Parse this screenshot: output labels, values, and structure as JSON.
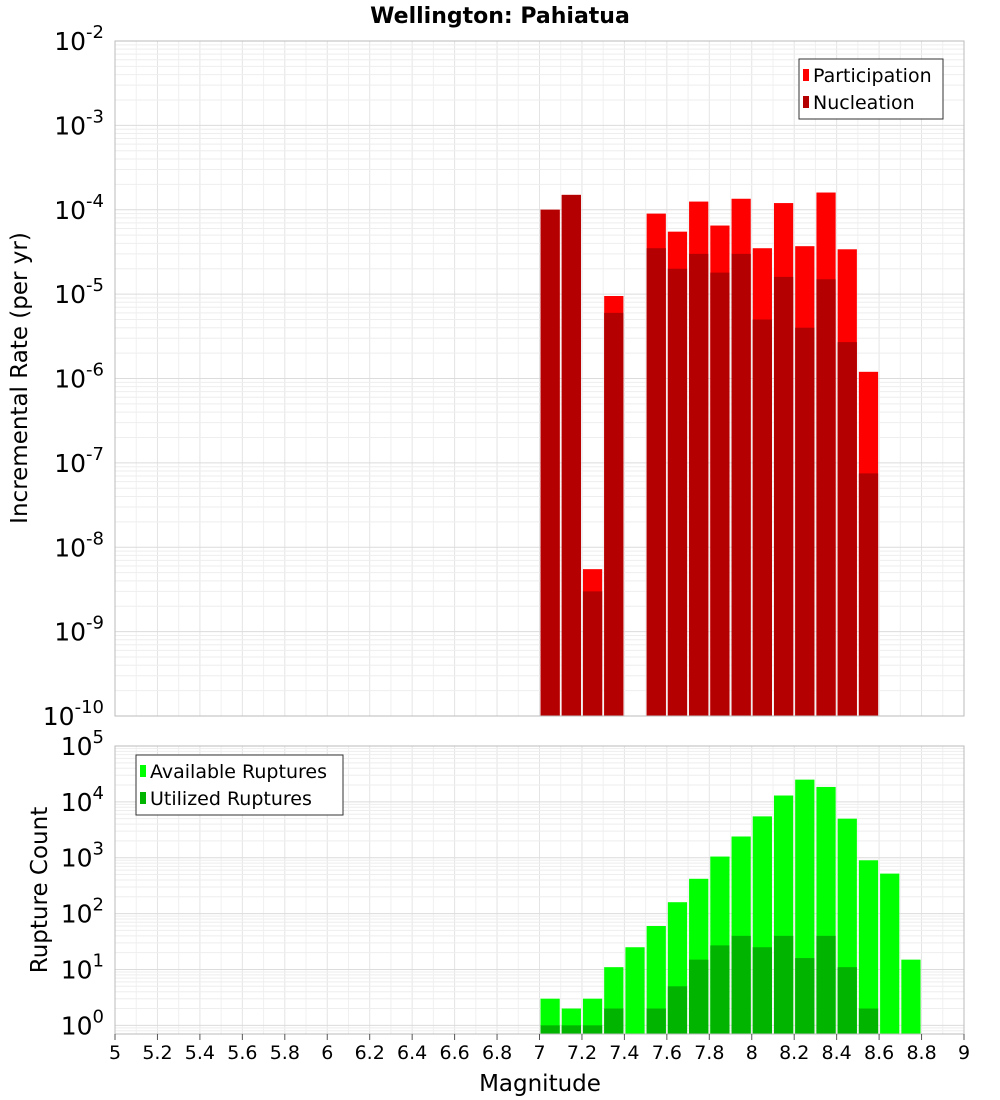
{
  "chart_data": [
    {
      "type": "bar",
      "title": "Wellington: Pahiatua",
      "ylabel": "Incremental Rate (per yr)",
      "xlabel": "",
      "xlim": [
        5,
        9
      ],
      "ylim": [
        1e-10,
        0.01
      ],
      "yscale": "log",
      "grid": true,
      "legend_position": "top-right",
      "series": [
        {
          "name": "Participation",
          "color": "#ff0000",
          "x": [
            7.05,
            7.15,
            7.25,
            7.35,
            7.55,
            7.65,
            7.75,
            7.85,
            7.95,
            8.05,
            8.15,
            8.25,
            8.35,
            8.45,
            8.55
          ],
          "values": [
            0.0001,
            0.00015,
            5.5e-09,
            9.5e-06,
            9e-05,
            5.5e-05,
            0.000125,
            6.5e-05,
            0.000135,
            3.5e-05,
            0.00012,
            3.7e-05,
            0.00016,
            3.4e-05,
            1.2e-06
          ]
        },
        {
          "name": "Nucleation",
          "color": "#b40000",
          "x": [
            7.05,
            7.15,
            7.25,
            7.35,
            7.55,
            7.65,
            7.75,
            7.85,
            7.95,
            8.05,
            8.15,
            8.25,
            8.35,
            8.45,
            8.55
          ],
          "values": [
            0.0001,
            0.00015,
            3e-09,
            6e-06,
            3.5e-05,
            2e-05,
            3e-05,
            1.8e-05,
            3e-05,
            5e-06,
            1.6e-05,
            4e-06,
            1.5e-05,
            2.7e-06,
            7.5e-08
          ]
        }
      ]
    },
    {
      "type": "bar",
      "title": "",
      "ylabel": "Rupture Count",
      "xlabel": "Magnitude",
      "xlim": [
        5,
        9
      ],
      "ylim": [
        0.7,
        100000.0
      ],
      "yscale": "log",
      "grid": true,
      "legend_position": "top-left",
      "series": [
        {
          "name": "Available Ruptures",
          "color": "#00ff00",
          "x": [
            7.05,
            7.15,
            7.25,
            7.35,
            7.45,
            7.55,
            7.65,
            7.75,
            7.85,
            7.95,
            8.05,
            8.15,
            8.25,
            8.35,
            8.45,
            8.55,
            8.65,
            8.75
          ],
          "values": [
            3,
            2,
            3,
            11,
            25,
            60,
            160,
            420,
            1050,
            2400,
            5500,
            13000,
            25000,
            18500,
            5000,
            900,
            520,
            15
          ]
        },
        {
          "name": "Utilized Ruptures",
          "color": "#00b400",
          "x": [
            7.05,
            7.15,
            7.25,
            7.35,
            7.45,
            7.55,
            7.65,
            7.75,
            7.85,
            7.95,
            8.05,
            8.15,
            8.25,
            8.35,
            8.45,
            8.55,
            8.65,
            8.75
          ],
          "values": [
            1,
            1,
            1,
            2,
            0,
            2,
            5,
            15,
            27,
            40,
            25,
            40,
            16,
            40,
            11,
            2,
            0,
            0
          ]
        }
      ]
    }
  ],
  "x_ticks": [
    "5",
    "5.2",
    "5.4",
    "5.6",
    "5.8",
    "6",
    "6.2",
    "6.4",
    "6.6",
    "6.8",
    "7",
    "7.2",
    "7.4",
    "7.6",
    "7.8",
    "8",
    "8.2",
    "8.4",
    "8.6",
    "8.8",
    "9"
  ],
  "top_y_ticks": [
    {
      "base": "10",
      "exp": "-2"
    },
    {
      "base": "10",
      "exp": "-3"
    },
    {
      "base": "10",
      "exp": "-4"
    },
    {
      "base": "10",
      "exp": "-5"
    },
    {
      "base": "10",
      "exp": "-6"
    },
    {
      "base": "10",
      "exp": "-7"
    },
    {
      "base": "10",
      "exp": "-8"
    },
    {
      "base": "10",
      "exp": "-9"
    },
    {
      "base": "10",
      "exp": "-10"
    }
  ],
  "bottom_y_ticks": [
    {
      "base": "10",
      "exp": "5"
    },
    {
      "base": "10",
      "exp": "4"
    },
    {
      "base": "10",
      "exp": "3"
    },
    {
      "base": "10",
      "exp": "2"
    },
    {
      "base": "10",
      "exp": "1"
    },
    {
      "base": "10",
      "exp": "0"
    }
  ]
}
